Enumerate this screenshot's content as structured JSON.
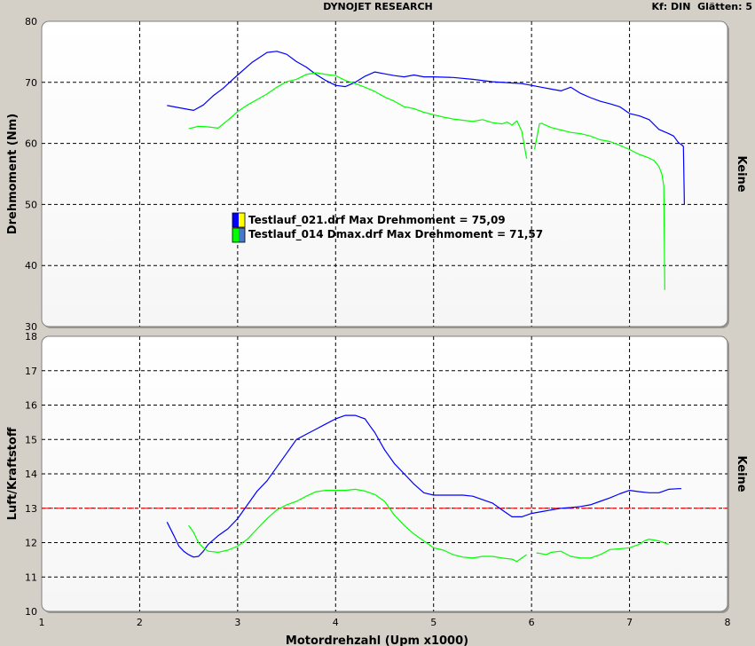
{
  "header": {
    "title": "DYNOJET RESEARCH",
    "settings": "Kf: DIN  Glätten: 5"
  },
  "chart_data": [
    {
      "type": "line",
      "panel": "top",
      "ylabel": "Drehmoment (Nm)",
      "right_label": "Keine",
      "xlim": [
        1,
        8
      ],
      "ylim": [
        30,
        80
      ],
      "y_ticks": [
        "30",
        "40",
        "50",
        "60",
        "70",
        "80"
      ],
      "grid": true,
      "legend": [
        {
          "label": "Testlauf_021.drf Max Drehmoment = 75,09",
          "color": "#0000ff"
        },
        {
          "label": "Testlauf_014 Dmax.drf Max Drehmoment = 71,57",
          "color": "#00ff00"
        }
      ],
      "series": [
        {
          "color": "#0000ff",
          "x": [
            2.28,
            2.45,
            2.55,
            2.65,
            2.75,
            2.85,
            3.0,
            3.15,
            3.3,
            3.4,
            3.5,
            3.6,
            3.7,
            3.8,
            3.9,
            4.0,
            4.1,
            4.2,
            4.3,
            4.4,
            4.5,
            4.6,
            4.7,
            4.8,
            4.9,
            5.0,
            5.2,
            5.4,
            5.6,
            5.8,
            5.9,
            6.0,
            6.1,
            6.2,
            6.3,
            6.4,
            6.5,
            6.6,
            6.7,
            6.8,
            6.9,
            7.0,
            7.1,
            7.2,
            7.3,
            7.4,
            7.45,
            7.5,
            7.53,
            7.55,
            7.56
          ],
          "y": [
            66.2,
            65.7,
            65.4,
            66.3,
            67.8,
            69.0,
            71.2,
            73.3,
            74.9,
            75.09,
            74.6,
            73.4,
            72.5,
            71.3,
            70.3,
            69.5,
            69.3,
            70.0,
            71.0,
            71.7,
            71.4,
            71.1,
            70.9,
            71.2,
            70.9,
            70.9,
            70.8,
            70.5,
            70.1,
            69.9,
            69.8,
            69.5,
            69.2,
            68.9,
            68.6,
            69.2,
            68.2,
            67.5,
            66.9,
            66.5,
            66.0,
            64.9,
            64.5,
            63.9,
            62.3,
            61.6,
            61.2,
            60.1,
            59.8,
            59.5,
            50.0
          ]
        },
        {
          "color": "#00ff00",
          "x": [
            2.5,
            2.6,
            2.7,
            2.8,
            2.9,
            3.0,
            3.1,
            3.2,
            3.3,
            3.4,
            3.5,
            3.6,
            3.7,
            3.8,
            3.9,
            4.0,
            4.1,
            4.2,
            4.3,
            4.4,
            4.5,
            4.6,
            4.7,
            4.8,
            4.9,
            5.0,
            5.1,
            5.2,
            5.3,
            5.4,
            5.5,
            5.6,
            5.7,
            5.75,
            5.8,
            5.85,
            5.9,
            5.95,
            null,
            6.03,
            6.08,
            6.1,
            6.2,
            6.3,
            6.4,
            6.5,
            6.6,
            6.7,
            6.8,
            6.9,
            7.0,
            7.1,
            7.2,
            7.25,
            7.3,
            7.33,
            7.35,
            7.36
          ],
          "y": [
            62.4,
            62.8,
            62.7,
            62.5,
            63.8,
            65.2,
            66.3,
            67.2,
            68.1,
            69.2,
            70.1,
            70.5,
            71.3,
            71.57,
            71.3,
            71.1,
            70.3,
            69.8,
            69.2,
            68.5,
            67.6,
            66.9,
            66.0,
            65.7,
            65.1,
            64.7,
            64.3,
            64.0,
            63.8,
            63.6,
            63.9,
            63.4,
            63.2,
            63.5,
            63.0,
            63.7,
            62.0,
            57.5,
            null,
            59.0,
            63.2,
            63.3,
            62.6,
            62.2,
            61.8,
            61.6,
            61.2,
            60.6,
            60.3,
            59.7,
            59.0,
            58.2,
            57.6,
            57.2,
            56.2,
            55.0,
            53.0,
            36.0
          ]
        }
      ]
    },
    {
      "type": "line",
      "panel": "bottom",
      "xlabel": "Motordrehzahl (Upm x1000)",
      "ylabel": "Luft/Kraftstoff",
      "right_label": "Keine",
      "xlim": [
        1,
        8
      ],
      "ylim": [
        10,
        18
      ],
      "x_ticks": [
        "1",
        "2",
        "3",
        "4",
        "5",
        "6",
        "7",
        "8"
      ],
      "y_ticks": [
        "10",
        "11",
        "12",
        "13",
        "14",
        "15",
        "16",
        "17",
        "18"
      ],
      "grid": true,
      "reference_line": {
        "y": 13,
        "color": "#ff0000"
      },
      "series": [
        {
          "color": "#0000ff",
          "x": [
            2.28,
            2.35,
            2.4,
            2.45,
            2.5,
            2.55,
            2.6,
            2.65,
            2.7,
            2.8,
            2.9,
            3.0,
            3.1,
            3.2,
            3.3,
            3.4,
            3.5,
            3.6,
            3.7,
            3.8,
            3.9,
            4.0,
            4.1,
            4.15,
            4.2,
            4.25,
            4.3,
            4.35,
            4.4,
            4.5,
            4.6,
            4.7,
            4.8,
            4.9,
            5.0,
            5.1,
            5.2,
            5.3,
            5.4,
            5.5,
            5.6,
            5.7,
            5.8,
            5.9,
            6.0,
            6.1,
            6.2,
            6.3,
            6.4,
            6.5,
            6.6,
            6.7,
            6.8,
            6.9,
            7.0,
            7.1,
            7.2,
            7.3,
            7.4,
            7.5,
            7.53
          ],
          "y": [
            12.6,
            12.2,
            11.9,
            11.75,
            11.65,
            11.58,
            11.6,
            11.75,
            11.95,
            12.2,
            12.4,
            12.7,
            13.1,
            13.5,
            13.8,
            14.2,
            14.6,
            15.0,
            15.15,
            15.3,
            15.45,
            15.6,
            15.7,
            15.7,
            15.7,
            15.65,
            15.6,
            15.4,
            15.2,
            14.7,
            14.3,
            14.0,
            13.7,
            13.45,
            13.38,
            13.38,
            13.38,
            13.38,
            13.35,
            13.25,
            13.15,
            12.95,
            12.75,
            12.75,
            12.85,
            12.9,
            12.95,
            13.0,
            13.02,
            13.05,
            13.1,
            13.2,
            13.3,
            13.42,
            13.52,
            13.48,
            13.45,
            13.45,
            13.55,
            13.57,
            13.57
          ]
        },
        {
          "color": "#00ff00",
          "x": [
            2.5,
            2.55,
            2.6,
            2.65,
            2.7,
            2.8,
            2.9,
            3.0,
            3.1,
            3.2,
            3.3,
            3.4,
            3.5,
            3.6,
            3.7,
            3.8,
            3.9,
            4.0,
            4.1,
            4.2,
            4.3,
            4.4,
            4.5,
            4.6,
            4.7,
            4.8,
            4.9,
            5.0,
            5.1,
            5.2,
            5.3,
            5.4,
            5.5,
            5.6,
            5.7,
            5.8,
            5.85,
            5.9,
            5.95,
            null,
            6.05,
            6.1,
            6.15,
            6.2,
            6.3,
            6.4,
            6.5,
            6.6,
            6.7,
            6.8,
            6.9,
            7.0,
            7.1,
            7.15,
            7.2,
            7.3,
            7.4
          ],
          "y": [
            12.5,
            12.3,
            12.0,
            11.85,
            11.75,
            11.72,
            11.78,
            11.9,
            12.1,
            12.4,
            12.7,
            12.95,
            13.1,
            13.2,
            13.35,
            13.48,
            13.52,
            13.52,
            13.52,
            13.55,
            13.5,
            13.4,
            13.2,
            12.8,
            12.5,
            12.25,
            12.05,
            11.85,
            11.78,
            11.65,
            11.58,
            11.55,
            11.6,
            11.6,
            11.55,
            11.52,
            11.45,
            11.55,
            11.65,
            null,
            11.7,
            11.68,
            11.65,
            11.72,
            11.75,
            11.6,
            11.55,
            11.55,
            11.65,
            11.8,
            11.82,
            11.85,
            11.95,
            12.05,
            12.1,
            12.05,
            11.95
          ]
        }
      ]
    }
  ]
}
